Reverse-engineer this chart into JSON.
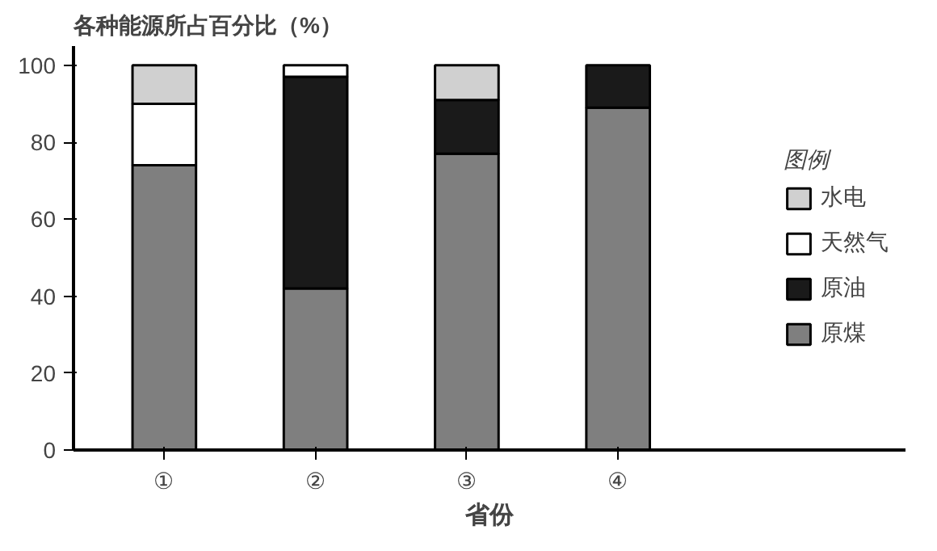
{
  "chart_data": {
    "type": "bar",
    "stacked": true,
    "ylabel": "各种能源所占百分比（%）",
    "xlabel": "省份",
    "legend_title": "图例",
    "categories": [
      "①",
      "②",
      "③",
      "④"
    ],
    "series": [
      {
        "name": "原煤",
        "color": "#7f7f7f",
        "values": [
          74,
          42,
          77,
          89
        ]
      },
      {
        "name": "原油",
        "color": "#1a1a1a",
        "values": [
          0,
          55,
          14,
          11
        ]
      },
      {
        "name": "天然气",
        "color": "#ffffff",
        "values": [
          16,
          3,
          0,
          0
        ]
      },
      {
        "name": "水电",
        "color": "#d0d0d0",
        "values": [
          10,
          0,
          9,
          0
        ]
      }
    ],
    "ylim": [
      0,
      105
    ],
    "yticks": [
      0,
      20,
      40,
      60,
      80,
      100
    ],
    "grid": false,
    "legend": "right"
  }
}
